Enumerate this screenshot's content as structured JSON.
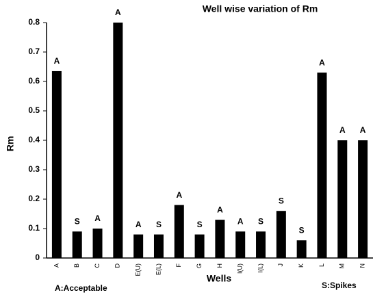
{
  "chart_data": {
    "type": "bar",
    "title": "Well wise variation of Rm",
    "x_label": "Wells",
    "y_label": "Rm",
    "categories": [
      "A",
      "B",
      "C",
      "D",
      "E(U)",
      "E(L)",
      "F",
      "G",
      "H",
      "I(U)",
      "I(L)",
      "J",
      "K",
      "L",
      "M",
      "N"
    ],
    "values": [
      0.635,
      0.09,
      0.1,
      0.8,
      0.08,
      0.08,
      0.18,
      0.08,
      0.13,
      0.09,
      0.09,
      0.16,
      0.06,
      0.63,
      0.4,
      0.4
    ],
    "annotations": [
      "A",
      "S",
      "A",
      "A",
      "A",
      "S",
      "A",
      "S",
      "A",
      "A",
      "S",
      "S",
      "S",
      "A",
      "A",
      "A"
    ],
    "notes": [
      "A:Acceptable",
      "S:Spikes"
    ],
    "color": "#000000",
    "ylim": [
      0,
      0.8
    ],
    "yticks": [
      0,
      0.1,
      0.2,
      0.3,
      0.4,
      0.5,
      0.6,
      0.7,
      0.8
    ],
    "grid": false
  }
}
